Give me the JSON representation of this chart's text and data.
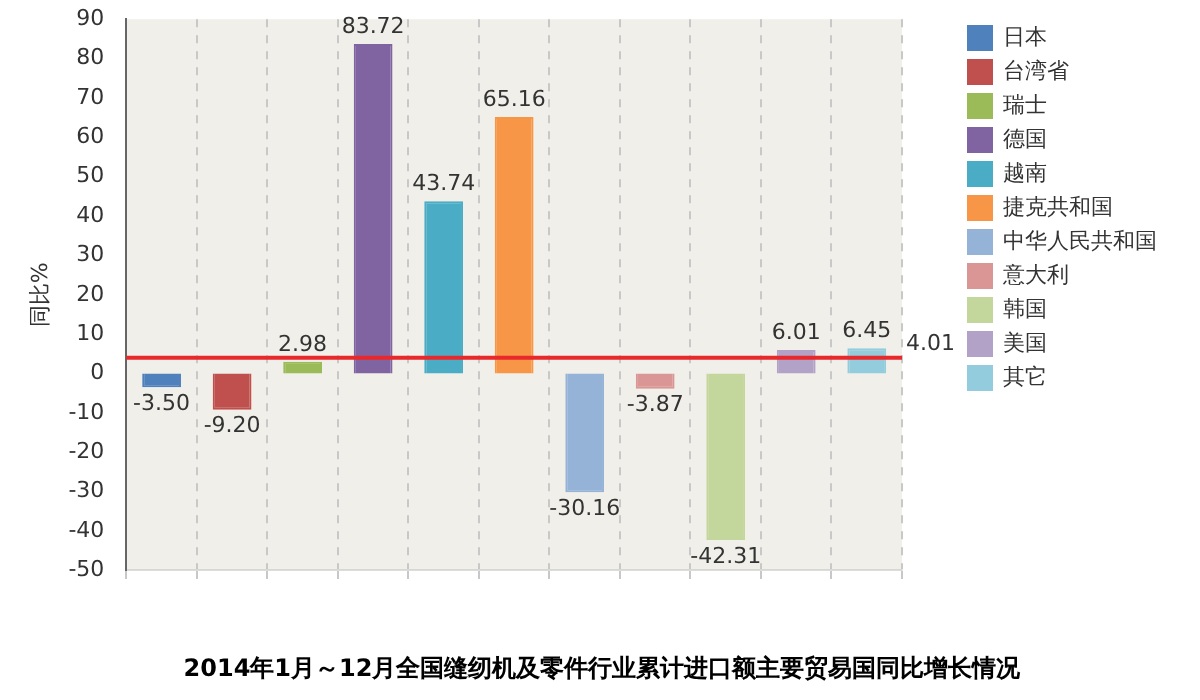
{
  "chart_data": {
    "type": "bar",
    "title": "2014年1月～12月全国缝纫机及零件行业累计进口额主要贸易国同比增长情况",
    "ylabel": "同比%",
    "categories": [
      null,
      null,
      null,
      null,
      null,
      null,
      null,
      null,
      null,
      null,
      null
    ],
    "series": [
      {
        "name": "日本",
        "color": "#4f81bd",
        "values": [
          -3.5,
          null,
          null,
          null,
          null,
          null,
          null,
          null,
          null,
          null,
          null
        ],
        "value_labels": [
          "-3.50",
          null,
          null,
          null,
          null,
          null,
          null,
          null,
          null,
          null,
          null
        ]
      },
      {
        "name": "台湾省",
        "color": "#c0504d",
        "values": [
          null,
          -9.2,
          null,
          null,
          null,
          null,
          null,
          null,
          null,
          null,
          null
        ],
        "value_labels": [
          null,
          "-9.20",
          null,
          null,
          null,
          null,
          null,
          null,
          null,
          null,
          null
        ]
      },
      {
        "name": "瑞士",
        "color": "#9bbb59",
        "values": [
          null,
          null,
          2.98,
          null,
          null,
          null,
          null,
          null,
          null,
          null,
          null
        ]
      },
      {
        "name": "德国",
        "color": "#8064a2",
        "values": [
          null,
          null,
          null,
          83.72,
          null,
          null,
          null,
          null,
          null,
          null,
          null
        ]
      },
      {
        "name": "越南",
        "color": "#4bacc6",
        "values": [
          null,
          null,
          null,
          null,
          43.74,
          null,
          null,
          null,
          null,
          null,
          null
        ]
      },
      {
        "name": "捷克共和国",
        "color": "#f79646",
        "values": [
          null,
          null,
          null,
          null,
          null,
          65.16,
          null,
          null,
          null,
          null,
          null
        ]
      },
      {
        "name": "中华人民共和国",
        "color": "#95b3d7",
        "values": [
          null,
          null,
          null,
          null,
          null,
          null,
          -30.16,
          null,
          null,
          null,
          null
        ]
      },
      {
        "name": "意大利",
        "color": "#d99694",
        "values": [
          null,
          null,
          null,
          null,
          null,
          null,
          null,
          -3.87,
          null,
          null,
          null
        ]
      },
      {
        "name": "韩国",
        "color": "#c3d69b",
        "values": [
          null,
          null,
          null,
          null,
          null,
          null,
          null,
          null,
          -42.31,
          null,
          null
        ]
      },
      {
        "name": "美国",
        "color": "#b3a2c7",
        "values": [
          null,
          null,
          null,
          null,
          null,
          null,
          null,
          null,
          null,
          6.01,
          null
        ]
      },
      {
        "name": "其它",
        "color": "#93cddd",
        "values": [
          null,
          null,
          null,
          null,
          null,
          null,
          null,
          null,
          null,
          null,
          6.45
        ]
      }
    ],
    "ylim": [
      -50,
      90
    ],
    "yticks": [
      -50,
      -40,
      -30,
      -20,
      -10,
      0,
      10,
      20,
      30,
      40,
      50,
      60,
      70,
      80,
      90
    ],
    "ref_lines": [
      {
        "axis": "y",
        "value": 4.01,
        "label": "4.01",
        "color": "#e8282a"
      }
    ],
    "grid": "x",
    "legend": "right",
    "data_labels": true
  }
}
